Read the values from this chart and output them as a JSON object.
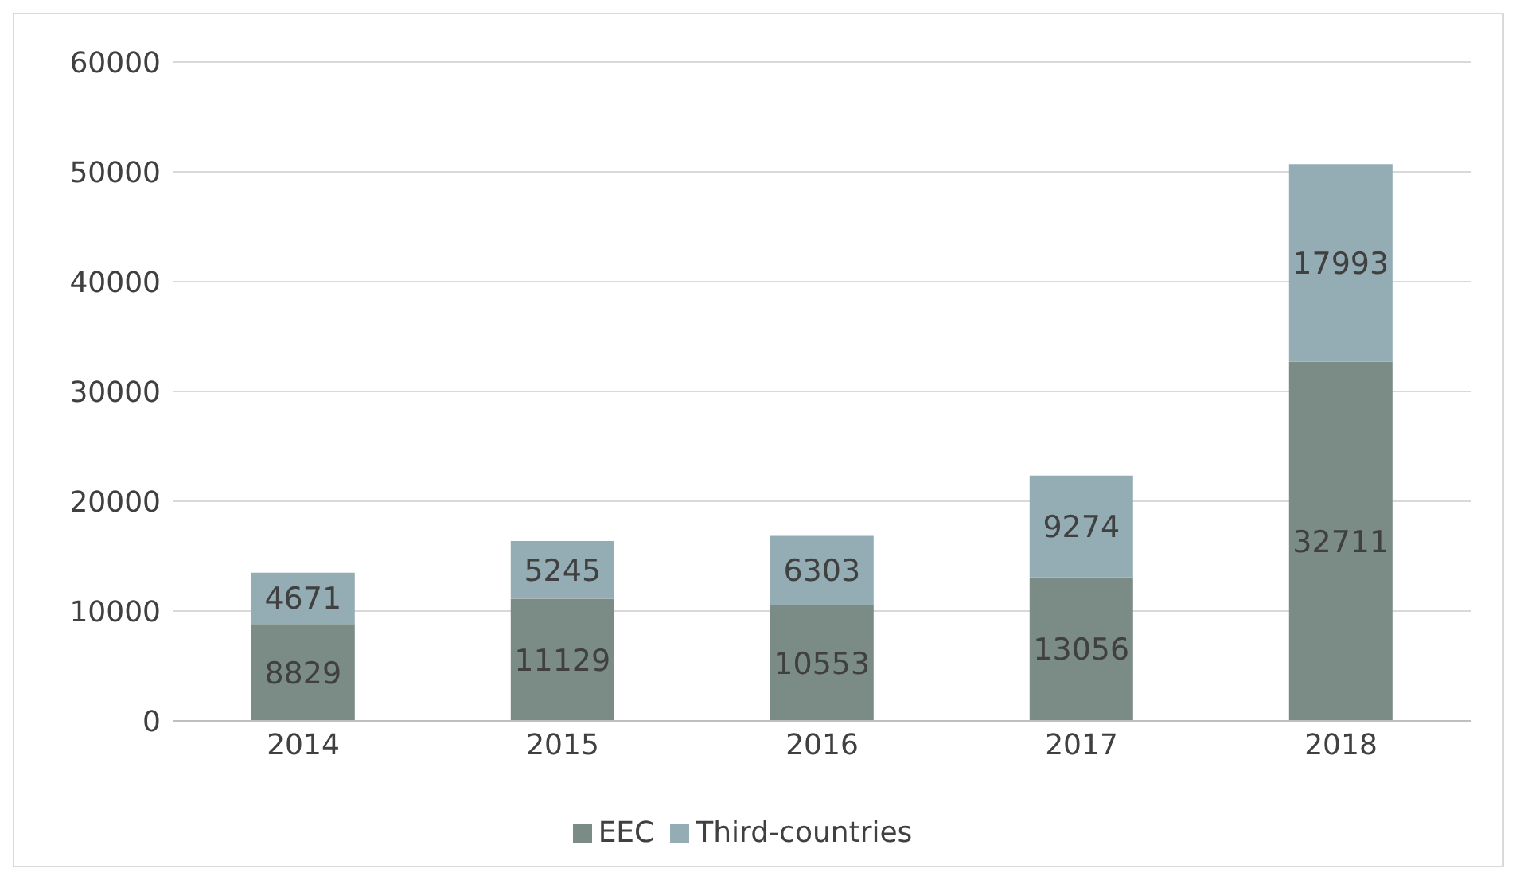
{
  "chart_data": {
    "type": "bar",
    "stacked": true,
    "categories": [
      "2014",
      "2015",
      "2016",
      "2017",
      "2018"
    ],
    "series": [
      {
        "name": "EEC",
        "color": "#7b8c87",
        "values": [
          8829,
          11129,
          10553,
          13056,
          32711
        ]
      },
      {
        "name": "Third-countries",
        "color": "#94adb5",
        "values": [
          4671,
          5245,
          6303,
          9274,
          17993
        ]
      }
    ],
    "ylim": [
      0,
      60000
    ],
    "yticks": [
      0,
      10000,
      20000,
      30000,
      40000,
      50000,
      60000
    ],
    "grid": "y",
    "legend": "bottom",
    "data_labels": true
  }
}
